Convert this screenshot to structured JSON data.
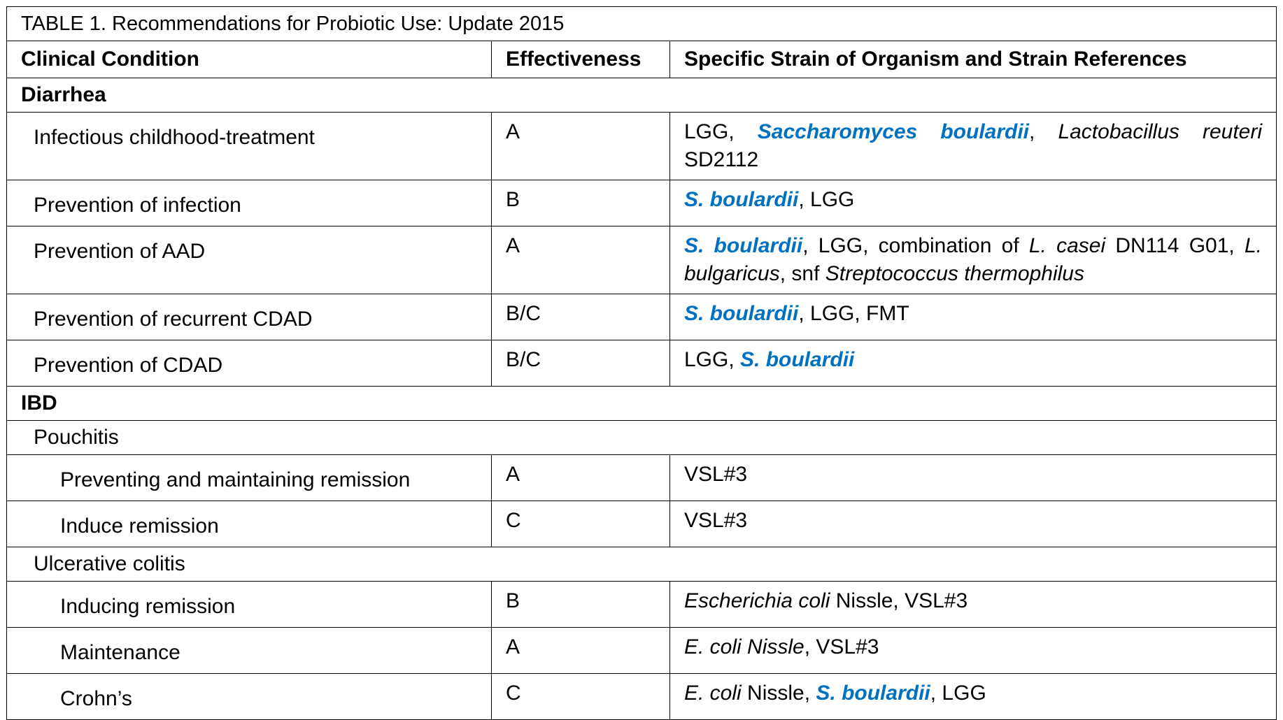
{
  "table": {
    "title": "TABLE 1. Recommendations for Probiotic Use: Update 2015",
    "highlight_color": "#0070c0",
    "columns": [
      "Clinical Condition",
      "Effectiveness",
      "Specific Strain of Organism and Strain References"
    ],
    "sections": [
      {
        "title": "Diarrhea",
        "rows": [
          {
            "condition": "Infectious childhood-treatment",
            "effectiveness": "A",
            "strains": [
              "LGG, ",
              {
                "text": "Saccharomyces boulardii",
                "style": "bold-italic"
              },
              ", ",
              {
                "text": "Lactobacillus reuteri",
                "style": "italic"
              },
              " SD2112"
            ]
          },
          {
            "condition": "Prevention of infection",
            "effectiveness": "B",
            "strains": [
              {
                "text": "S. boulardii",
                "style": "bold-italic"
              },
              ", LGG"
            ]
          },
          {
            "condition": "Prevention of AAD",
            "effectiveness": "A",
            "strains": [
              {
                "text": "S. boulardii",
                "style": "bold-italic"
              },
              ", LGG, combination of ",
              {
                "text": "L. casei",
                "style": "italic"
              },
              " DN114 G01, ",
              {
                "text": "L. bulgaricus",
                "style": "italic"
              },
              ", snf ",
              {
                "text": "Streptococcus thermophilus",
                "style": "italic"
              }
            ]
          },
          {
            "condition": "Prevention of recurrent CDAD",
            "effectiveness": "B/C",
            "strains": [
              {
                "text": "S. boulardii",
                "style": "bold-italic"
              },
              ", LGG, FMT"
            ]
          },
          {
            "condition": "Prevention of CDAD",
            "effectiveness": "B/C",
            "strains": [
              "LGG, ",
              {
                "text": "S. boulardii",
                "style": "bold-italic"
              }
            ]
          }
        ]
      },
      {
        "title": "IBD",
        "groups": [
          {
            "title": "Pouchitis",
            "rows": [
              {
                "condition": "Preventing and maintaining remission",
                "effectiveness": "A",
                "strains": [
                  "VSL#3"
                ]
              },
              {
                "condition": "Induce remission",
                "effectiveness": "C",
                "strains": [
                  "VSL#3"
                ]
              }
            ]
          },
          {
            "title": "Ulcerative colitis",
            "rows": [
              {
                "condition": "Inducing remission",
                "effectiveness": "B",
                "strains": [
                  {
                    "text": "Escherichia coli",
                    "style": "italic"
                  },
                  " Nissle, VSL#3"
                ]
              },
              {
                "condition": "Maintenance",
                "effectiveness": "A",
                "strains": [
                  {
                    "text": "E. coli Nissle",
                    "style": "italic"
                  },
                  ", VSL#3"
                ]
              },
              {
                "condition": "Crohn’s",
                "effectiveness": "C",
                "strains": [
                  {
                    "text": "E. coli",
                    "style": "italic"
                  },
                  " Nissle, ",
                  {
                    "text": "S. boulardii",
                    "style": "bold-italic"
                  },
                  ", LGG"
                ]
              }
            ]
          }
        ]
      }
    ]
  }
}
